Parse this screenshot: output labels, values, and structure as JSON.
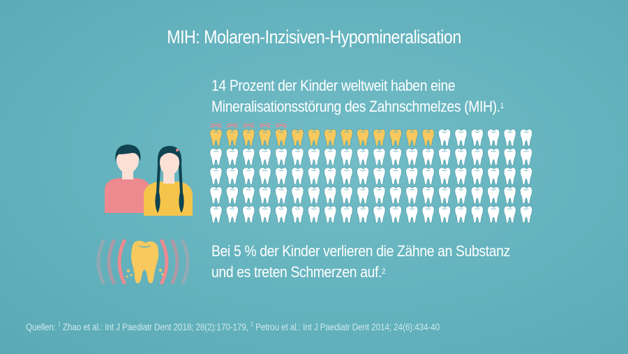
{
  "title": "MIH: Molaren-Inzisiven-Hypomineralisation",
  "stat1": {
    "line1": "14 Prozent der Kinder weltweit haben eine",
    "line2": "Mineralisationsstörung des Zahnschmelzes (MIH).",
    "footnote": "1"
  },
  "stat2": {
    "line1": "Bei 5 % der Kinder verlieren die Zähne an Substanz",
    "line2": "und es treten Schmerzen auf.",
    "footnote": "2"
  },
  "teeth_grid": {
    "total": 100,
    "columns": 20,
    "affected": 14,
    "painful": 5
  },
  "sources": {
    "label": "Quellen:",
    "ref1_num": "1",
    "ref1": "Zhao et al.: Int J Paediatr Dent 2018; 28(2):170-179,",
    "ref2_num": "2",
    "ref2": "Petrou et al.: Int J Paediatr Dent 2014; 24(6):434-40"
  },
  "colors": {
    "background": "#63b2bd",
    "tooth_healthy": "#ffffff",
    "tooth_affected": "#f7c95e",
    "pain_arc": "#ec8a8f",
    "boy_shirt": "#ec8a8f",
    "girl_shirt": "#f5c54b",
    "hair": "#0f4450",
    "skin": "#fbe0d6"
  },
  "icons": {
    "kids": "children-icon",
    "pain_tooth": "painful-tooth-icon",
    "tooth": "tooth-icon"
  }
}
